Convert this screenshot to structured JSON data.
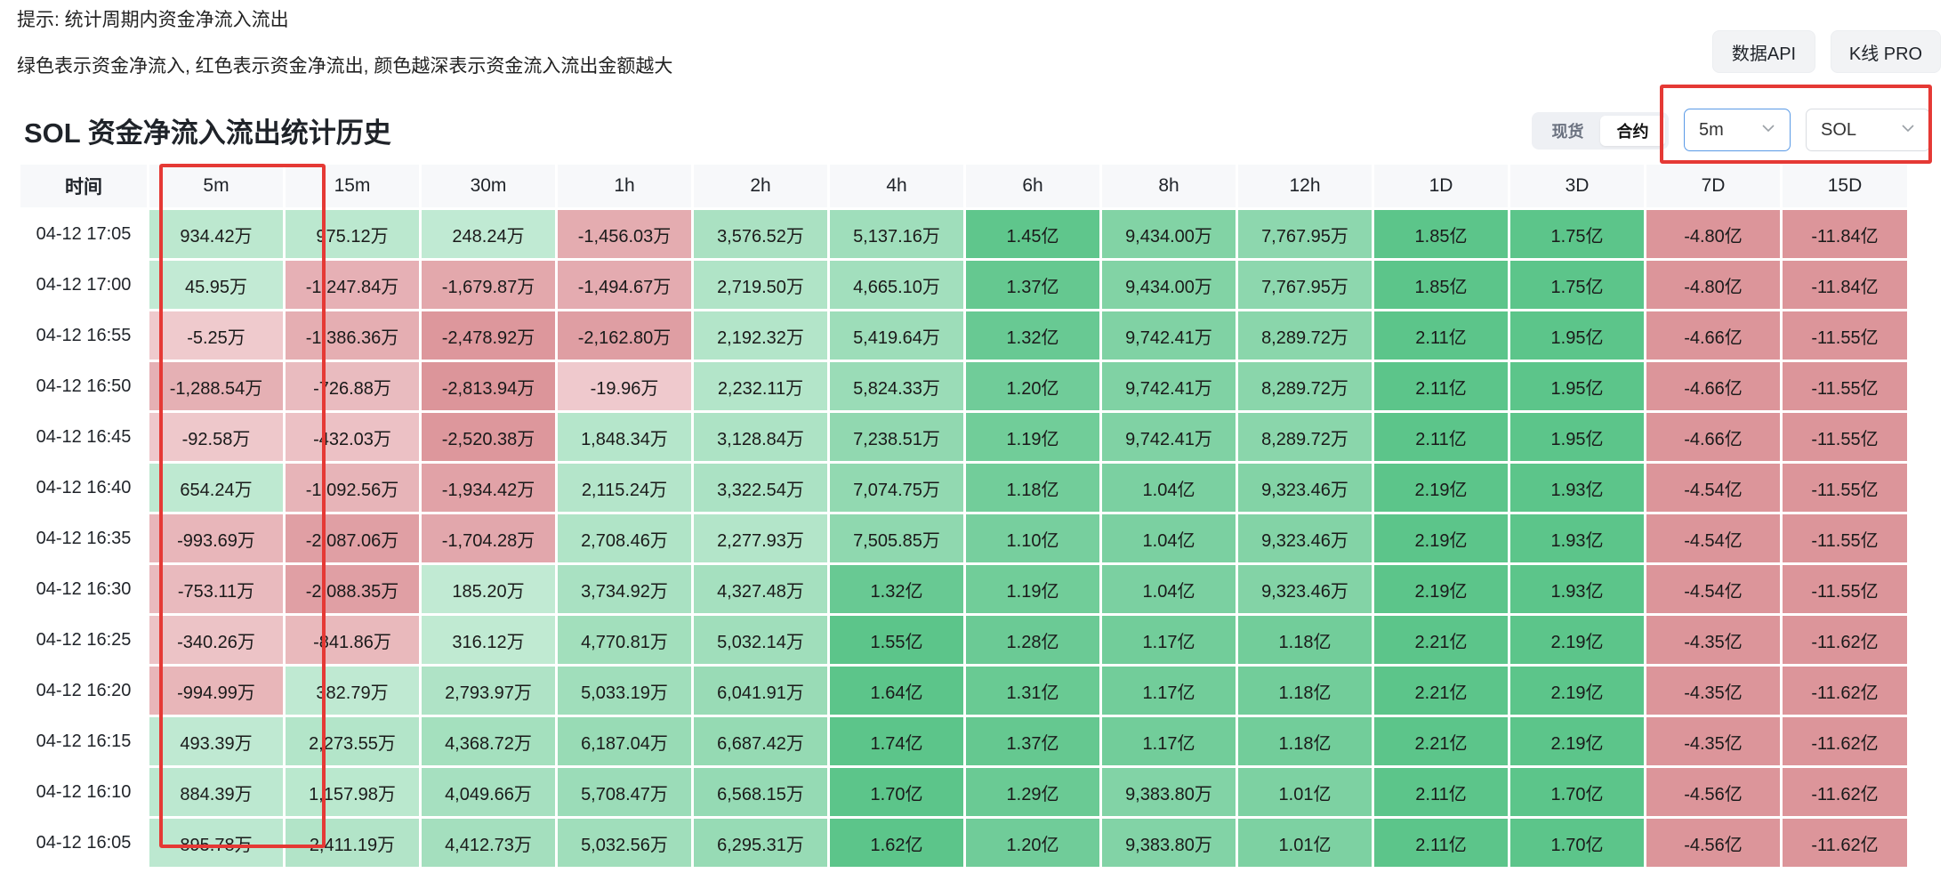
{
  "hints": {
    "line1": "提示: 统计周期内资金净流入流出",
    "line2": "绿色表示资金净流入, 红色表示资金净流出, 颜色越深表示资金流入流出金额越大"
  },
  "header_buttons": {
    "api": "数据API",
    "kline": "K线 PRO"
  },
  "title": "SOL 资金净流入流出统计历史",
  "market_toggle": {
    "options": [
      "现货",
      "合约"
    ],
    "selected": "合约"
  },
  "selects": {
    "interval": {
      "value": "5m",
      "icon": "chevron-down-icon"
    },
    "coin": {
      "value": "SOL",
      "icon": "chevron-down-icon"
    }
  },
  "colors": {
    "highlight": "#e53935",
    "inflow": "#5cc58a",
    "outflow": "#dc959a"
  },
  "table": {
    "columns": [
      "时间",
      "5m",
      "15m",
      "30m",
      "1h",
      "2h",
      "4h",
      "6h",
      "8h",
      "12h",
      "1D",
      "3D",
      "7D",
      "15D"
    ],
    "rows": [
      {
        "time": "04-12 17:05",
        "cells": [
          "934.42万",
          "975.12万",
          "248.24万",
          "-1,456.03万",
          "3,576.52万",
          "5,137.16万",
          "1.45亿",
          "9,434.00万",
          "7,767.95万",
          "1.85亿",
          "1.75亿",
          "-4.80亿",
          "-11.84亿"
        ]
      },
      {
        "time": "04-12 17:00",
        "cells": [
          "45.95万",
          "-1,247.84万",
          "-1,679.87万",
          "-1,494.67万",
          "2,719.50万",
          "4,665.10万",
          "1.37亿",
          "9,434.00万",
          "7,767.95万",
          "1.85亿",
          "1.75亿",
          "-4.80亿",
          "-11.84亿"
        ]
      },
      {
        "time": "04-12 16:55",
        "cells": [
          "-5.25万",
          "-1,386.36万",
          "-2,478.92万",
          "-2,162.80万",
          "2,192.32万",
          "5,419.64万",
          "1.32亿",
          "9,742.41万",
          "8,289.72万",
          "2.11亿",
          "1.95亿",
          "-4.66亿",
          "-11.55亿"
        ]
      },
      {
        "time": "04-12 16:50",
        "cells": [
          "-1,288.54万",
          "-726.88万",
          "-2,813.94万",
          "-19.96万",
          "2,232.11万",
          "5,824.33万",
          "1.20亿",
          "9,742.41万",
          "8,289.72万",
          "2.11亿",
          "1.95亿",
          "-4.66亿",
          "-11.55亿"
        ]
      },
      {
        "time": "04-12 16:45",
        "cells": [
          "-92.58万",
          "-432.03万",
          "-2,520.38万",
          "1,848.34万",
          "3,128.84万",
          "7,238.51万",
          "1.19亿",
          "9,742.41万",
          "8,289.72万",
          "2.11亿",
          "1.95亿",
          "-4.66亿",
          "-11.55亿"
        ]
      },
      {
        "time": "04-12 16:40",
        "cells": [
          "654.24万",
          "-1,092.56万",
          "-1,934.42万",
          "2,115.24万",
          "3,322.54万",
          "7,074.75万",
          "1.18亿",
          "1.04亿",
          "9,323.46万",
          "2.19亿",
          "1.93亿",
          "-4.54亿",
          "-11.55亿"
        ]
      },
      {
        "time": "04-12 16:35",
        "cells": [
          "-993.69万",
          "-2,087.06万",
          "-1,704.28万",
          "2,708.46万",
          "2,277.93万",
          "7,505.85万",
          "1.10亿",
          "1.04亿",
          "9,323.46万",
          "2.19亿",
          "1.93亿",
          "-4.54亿",
          "-11.55亿"
        ]
      },
      {
        "time": "04-12 16:30",
        "cells": [
          "-753.11万",
          "-2,088.35万",
          "185.20万",
          "3,734.92万",
          "4,327.48万",
          "1.32亿",
          "1.19亿",
          "1.04亿",
          "9,323.46万",
          "2.19亿",
          "1.93亿",
          "-4.54亿",
          "-11.55亿"
        ]
      },
      {
        "time": "04-12 16:25",
        "cells": [
          "-340.26万",
          "-841.86万",
          "316.12万",
          "4,770.81万",
          "5,032.14万",
          "1.55亿",
          "1.28亿",
          "1.17亿",
          "1.18亿",
          "2.21亿",
          "2.19亿",
          "-4.35亿",
          "-11.62亿"
        ]
      },
      {
        "time": "04-12 16:20",
        "cells": [
          "-994.99万",
          "382.79万",
          "2,793.97万",
          "5,033.19万",
          "6,041.91万",
          "1.64亿",
          "1.31亿",
          "1.17亿",
          "1.18亿",
          "2.21亿",
          "2.19亿",
          "-4.35亿",
          "-11.62亿"
        ]
      },
      {
        "time": "04-12 16:15",
        "cells": [
          "493.39万",
          "2,273.55万",
          "4,368.72万",
          "6,187.04万",
          "6,687.42万",
          "1.74亿",
          "1.37亿",
          "1.17亿",
          "1.18亿",
          "2.21亿",
          "2.19亿",
          "-4.35亿",
          "-11.62亿"
        ]
      },
      {
        "time": "04-12 16:10",
        "cells": [
          "884.39万",
          "1,157.98万",
          "4,049.66万",
          "5,708.47万",
          "6,568.15万",
          "1.70亿",
          "1.29亿",
          "9,383.80万",
          "1.01亿",
          "2.11亿",
          "1.70亿",
          "-4.56亿",
          "-11.62亿"
        ]
      },
      {
        "time": "04-12 16:05",
        "cells": [
          "895.78万",
          "2,411.19万",
          "4,412.73万",
          "5,032.56万",
          "6,295.31万",
          "1.62亿",
          "1.20亿",
          "9,383.80万",
          "1.01亿",
          "2.11亿",
          "1.70亿",
          "-4.56亿",
          "-11.62亿"
        ]
      }
    ]
  }
}
